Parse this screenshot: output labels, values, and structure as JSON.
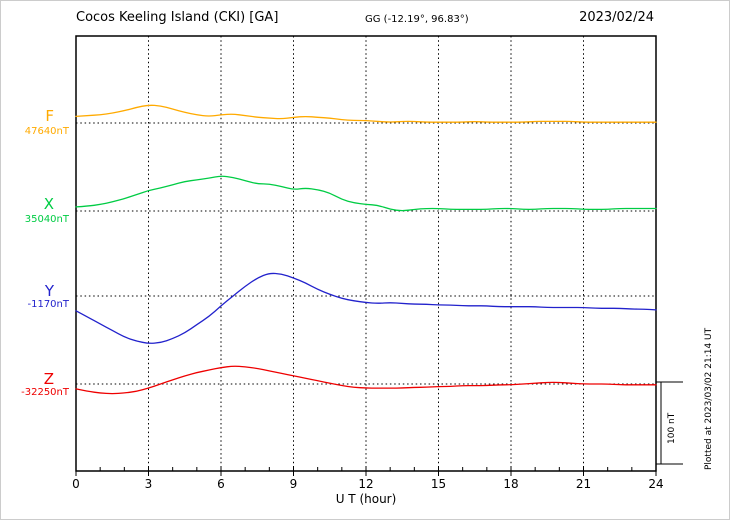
{
  "header": {
    "station_title": "Cocos Keeling Island (CKI)  [GA]",
    "gg_coords": "GG (-12.19°,  96.83°)",
    "date": "2023/02/24"
  },
  "axis": {
    "xlabel": "U T (hour)",
    "xmin": 0,
    "xmax": 24,
    "ticks": [
      0,
      3,
      6,
      9,
      12,
      15,
      18,
      21,
      24
    ],
    "grid_hours": [
      3,
      6,
      9,
      12,
      15,
      18,
      21
    ]
  },
  "scale_bar": {
    "label": "100 nT",
    "nT": 100
  },
  "footer_note": "Plotted at 2023/03/02 21:14 UT",
  "chart_data": {
    "type": "line",
    "title": "Cocos Keeling Island (CKI) [GA] magnetogram 2023/02/24",
    "xlabel": "U T (hour)",
    "x_range_hours": [
      0,
      24
    ],
    "x_start": 0,
    "x_step_hours": 0.5,
    "grid": "dotted",
    "series": [
      {
        "name": "F",
        "color": "#ffaa00",
        "baseline_label": "47640nT",
        "baseline_nT": 47640,
        "values_offset_nT": [
          8,
          9,
          10,
          12,
          15,
          19,
          22,
          21,
          17,
          13,
          10,
          8,
          10,
          11,
          9,
          7,
          6,
          5,
          7,
          8,
          7,
          6,
          4,
          3,
          3,
          2,
          1,
          2,
          2,
          1,
          1,
          1,
          1,
          2,
          1,
          1,
          1,
          1,
          2,
          2,
          2,
          2,
          1,
          1,
          1,
          1,
          1,
          1,
          1
        ]
      },
      {
        "name": "X",
        "color": "#00cc44",
        "baseline_label": "35040nT",
        "baseline_nT": 35040,
        "values_offset_nT": [
          5,
          6,
          8,
          11,
          15,
          20,
          25,
          28,
          32,
          36,
          38,
          40,
          43,
          41,
          37,
          33,
          33,
          30,
          26,
          28,
          26,
          22,
          14,
          10,
          8,
          7,
          2,
          0,
          2,
          3,
          3,
          2,
          2,
          2,
          2,
          3,
          3,
          2,
          2,
          3,
          3,
          3,
          2,
          2,
          2,
          3,
          3,
          3,
          3
        ]
      },
      {
        "name": "Y",
        "color": "#2222cc",
        "baseline_label": "-1170nT",
        "baseline_nT": -1170,
        "values_offset_nT": [
          -18,
          -26,
          -34,
          -42,
          -50,
          -55,
          -58,
          -57,
          -52,
          -45,
          -35,
          -25,
          -12,
          0,
          12,
          22,
          28,
          27,
          22,
          16,
          8,
          2,
          -3,
          -6,
          -8,
          -9,
          -8,
          -9,
          -10,
          -10,
          -11,
          -11,
          -12,
          -12,
          -12,
          -13,
          -13,
          -13,
          -13,
          -14,
          -14,
          -14,
          -14,
          -15,
          -15,
          -15,
          -16,
          -16,
          -17
        ]
      },
      {
        "name": "Z",
        "color": "#ee0000",
        "baseline_label": "-32250nT",
        "baseline_nT": -32250,
        "values_offset_nT": [
          -6,
          -9,
          -11,
          -12,
          -11,
          -9,
          -5,
          0,
          5,
          10,
          14,
          17,
          20,
          22,
          21,
          19,
          16,
          13,
          10,
          7,
          4,
          1,
          -2,
          -4,
          -5,
          -5,
          -5,
          -5,
          -4,
          -4,
          -3,
          -3,
          -2,
          -2,
          -2,
          -1,
          -1,
          0,
          1,
          2,
          2,
          1,
          0,
          0,
          0,
          -1,
          -1,
          -1,
          -1
        ]
      }
    ]
  }
}
